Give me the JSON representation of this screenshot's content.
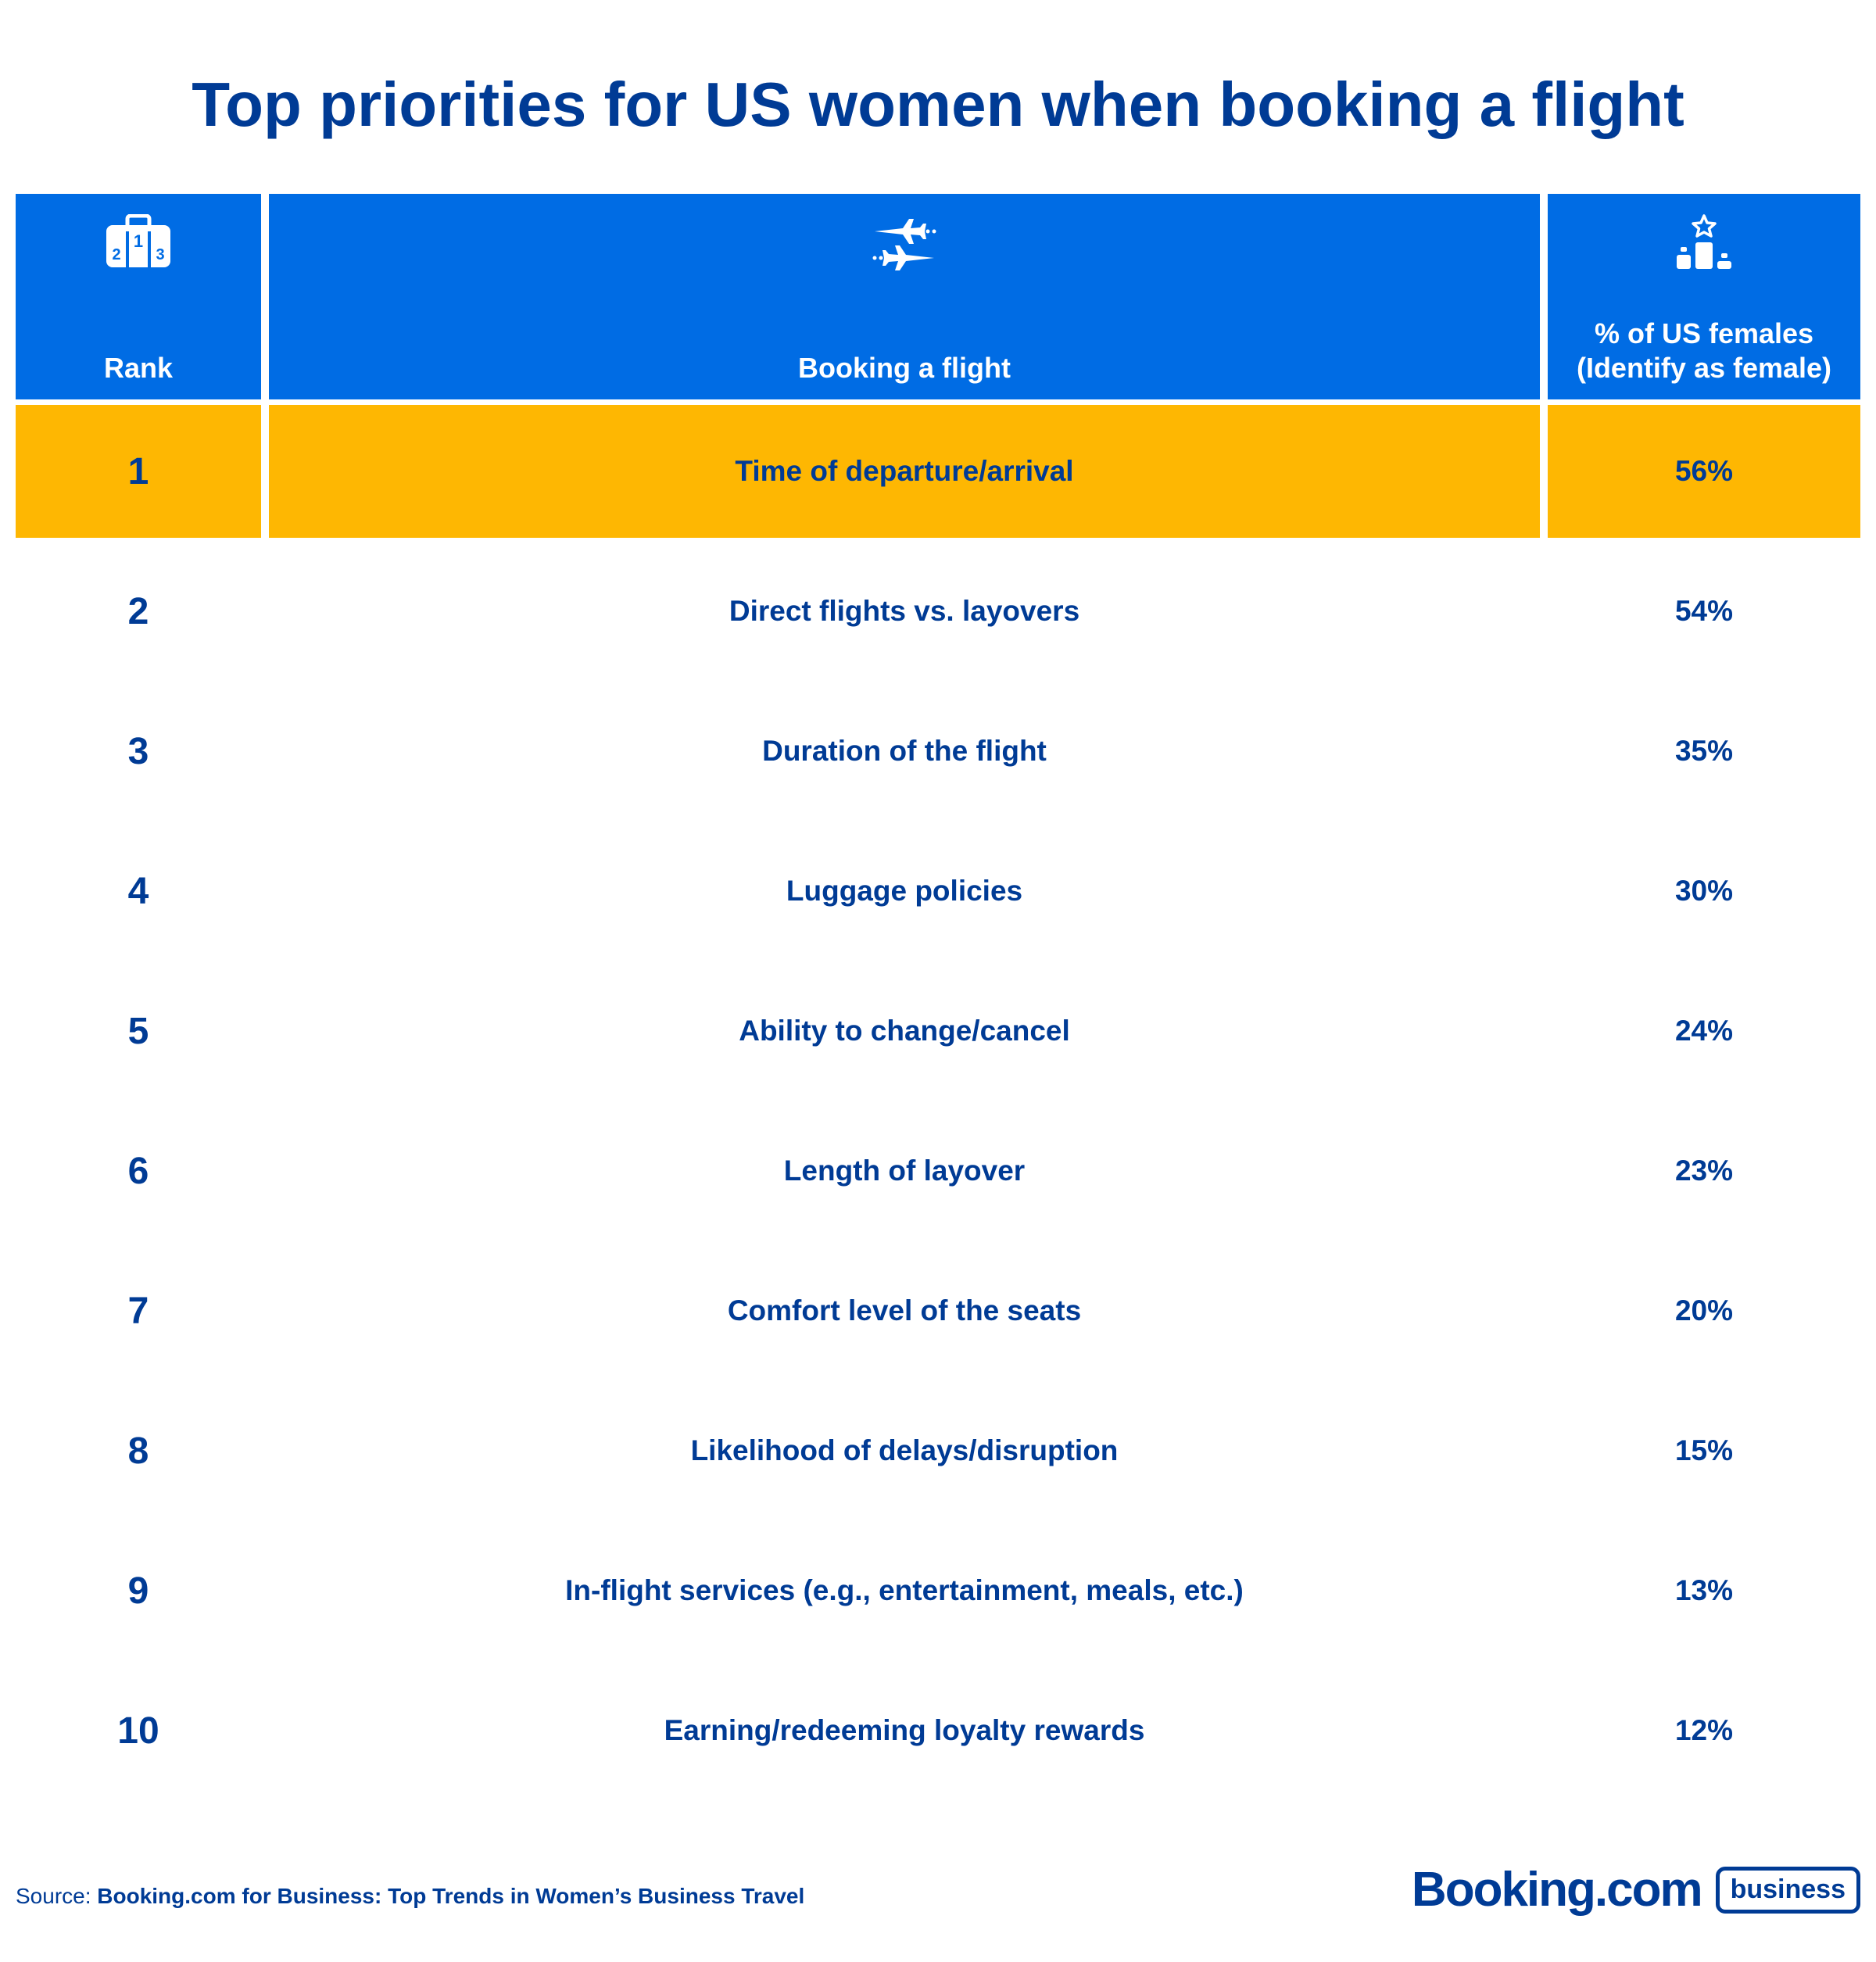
{
  "title": "Top priorities for US women when booking a flight",
  "header": {
    "rank_label": "Rank",
    "item_label": "Booking a flight",
    "pct_label_line1": "% of US females",
    "pct_label_line2": "(Identify as female)",
    "rank_icon": "podium-numbers-icon",
    "item_icon": "planes-icon",
    "pct_icon": "podium-star-icon"
  },
  "rows": [
    {
      "rank": "1",
      "item": "Time of departure/arrival",
      "pct": "56%"
    },
    {
      "rank": "2",
      "item": "Direct flights vs. layovers",
      "pct": "54%"
    },
    {
      "rank": "3",
      "item": "Duration of the flight",
      "pct": "35%"
    },
    {
      "rank": "4",
      "item": "Luggage policies",
      "pct": "30%"
    },
    {
      "rank": "5",
      "item": "Ability to change/cancel",
      "pct": "24%"
    },
    {
      "rank": "6",
      "item": "Length of layover",
      "pct": "23%"
    },
    {
      "rank": "7",
      "item": "Comfort level of the seats",
      "pct": "20%"
    },
    {
      "rank": "8",
      "item": "Likelihood of delays/disruption",
      "pct": "15%"
    },
    {
      "rank": "9",
      "item": "In-flight services (e.g., entertainment, meals, etc.)",
      "pct": "13%"
    },
    {
      "rank": "10",
      "item": "Earning/redeeming loyalty rewards",
      "pct": "12%"
    }
  ],
  "footer": {
    "source_label": "Source: ",
    "source_text": "Booking.com for Business: Top Trends in Women’s Business Travel",
    "logo_word": "Booking.com",
    "logo_badge": "business"
  },
  "colors": {
    "header_bg": "#006ce4",
    "highlight_bg": "#feb702",
    "text": "#003b95"
  },
  "chart_data": {
    "type": "table",
    "title": "Top priorities for US women when booking a flight",
    "columns": [
      "Rank",
      "Booking a flight",
      "% of US females (Identify as female)"
    ],
    "rows": [
      [
        1,
        "Time of departure/arrival",
        56
      ],
      [
        2,
        "Direct flights vs. layovers",
        54
      ],
      [
        3,
        "Duration of the flight",
        35
      ],
      [
        4,
        "Luggage policies",
        30
      ],
      [
        5,
        "Ability to change/cancel",
        24
      ],
      [
        6,
        "Length of layover",
        23
      ],
      [
        7,
        "Comfort level of the seats",
        20
      ],
      [
        8,
        "Likelihood of delays/disruption",
        15
      ],
      [
        9,
        "In-flight services (e.g., entertainment, meals, etc.)",
        13
      ],
      [
        10,
        "Earning/redeeming loyalty rewards",
        12
      ]
    ],
    "highlighted_row": 1
  }
}
